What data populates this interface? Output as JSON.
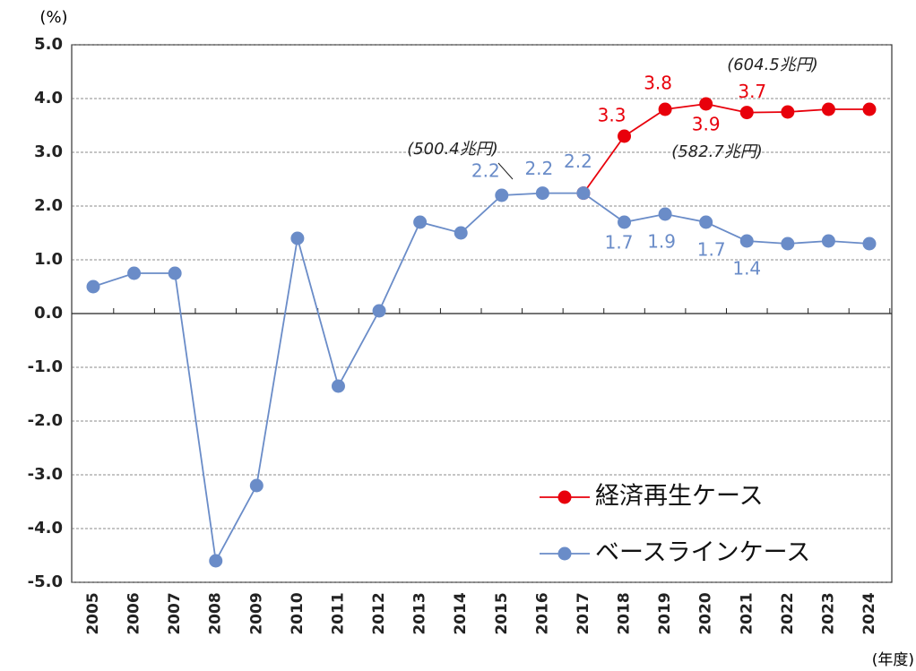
{
  "chart_data": {
    "type": "line",
    "y_unit": "(%)",
    "x_unit": "(年度)",
    "categories": [
      "2005",
      "2006",
      "2007",
      "2008",
      "2009",
      "2010",
      "2011",
      "2012",
      "2013",
      "2014",
      "2015",
      "2016",
      "2017",
      "2018",
      "2019",
      "2020",
      "2021",
      "2022",
      "2023",
      "2024"
    ],
    "series": [
      {
        "name": "経済再生ケース",
        "color": "#e8000b",
        "values": [
          null,
          null,
          null,
          null,
          null,
          null,
          null,
          null,
          null,
          null,
          null,
          null,
          2.24,
          3.3,
          3.8,
          3.9,
          3.74,
          3.75,
          3.8,
          3.8
        ],
        "value_labels": [
          null,
          null,
          null,
          null,
          null,
          null,
          null,
          null,
          null,
          null,
          null,
          null,
          null,
          "3.3",
          "3.8",
          "3.9",
          "3.7",
          null,
          null,
          null
        ]
      },
      {
        "name": "ベースラインケース",
        "color": "#6a8cc8",
        "values": [
          0.5,
          0.75,
          0.75,
          -4.6,
          -3.2,
          1.4,
          -1.35,
          0.05,
          1.7,
          1.5,
          2.2,
          2.24,
          2.24,
          1.7,
          1.85,
          1.7,
          1.35,
          1.3,
          1.35,
          1.3
        ],
        "value_labels": [
          null,
          null,
          null,
          null,
          null,
          null,
          null,
          null,
          null,
          null,
          "2.2",
          "2.2",
          "2.2",
          "1.7",
          "1.9",
          "1.7",
          "1.4",
          null,
          null,
          null
        ]
      }
    ],
    "annotations": [
      "(500.4兆円)",
      "(582.7兆円)",
      "(604.5兆円)"
    ],
    "ylim": [
      -5,
      5
    ],
    "yticks": [
      {
        "value": 5,
        "label": "5.0"
      },
      {
        "value": 4,
        "label": "4.0"
      },
      {
        "value": 3,
        "label": "3.0"
      },
      {
        "value": 2,
        "label": "2.0"
      },
      {
        "value": 1,
        "label": "1.0"
      },
      {
        "value": 0,
        "label": "0.0"
      },
      {
        "value": -1,
        "label": "-1.0"
      },
      {
        "value": -2,
        "label": "-2.0"
      },
      {
        "value": -3,
        "label": "-3.0"
      },
      {
        "value": -4,
        "label": "-4.0"
      },
      {
        "value": -5,
        "label": "-5.0"
      }
    ],
    "grid": true,
    "legend": "lower right"
  }
}
